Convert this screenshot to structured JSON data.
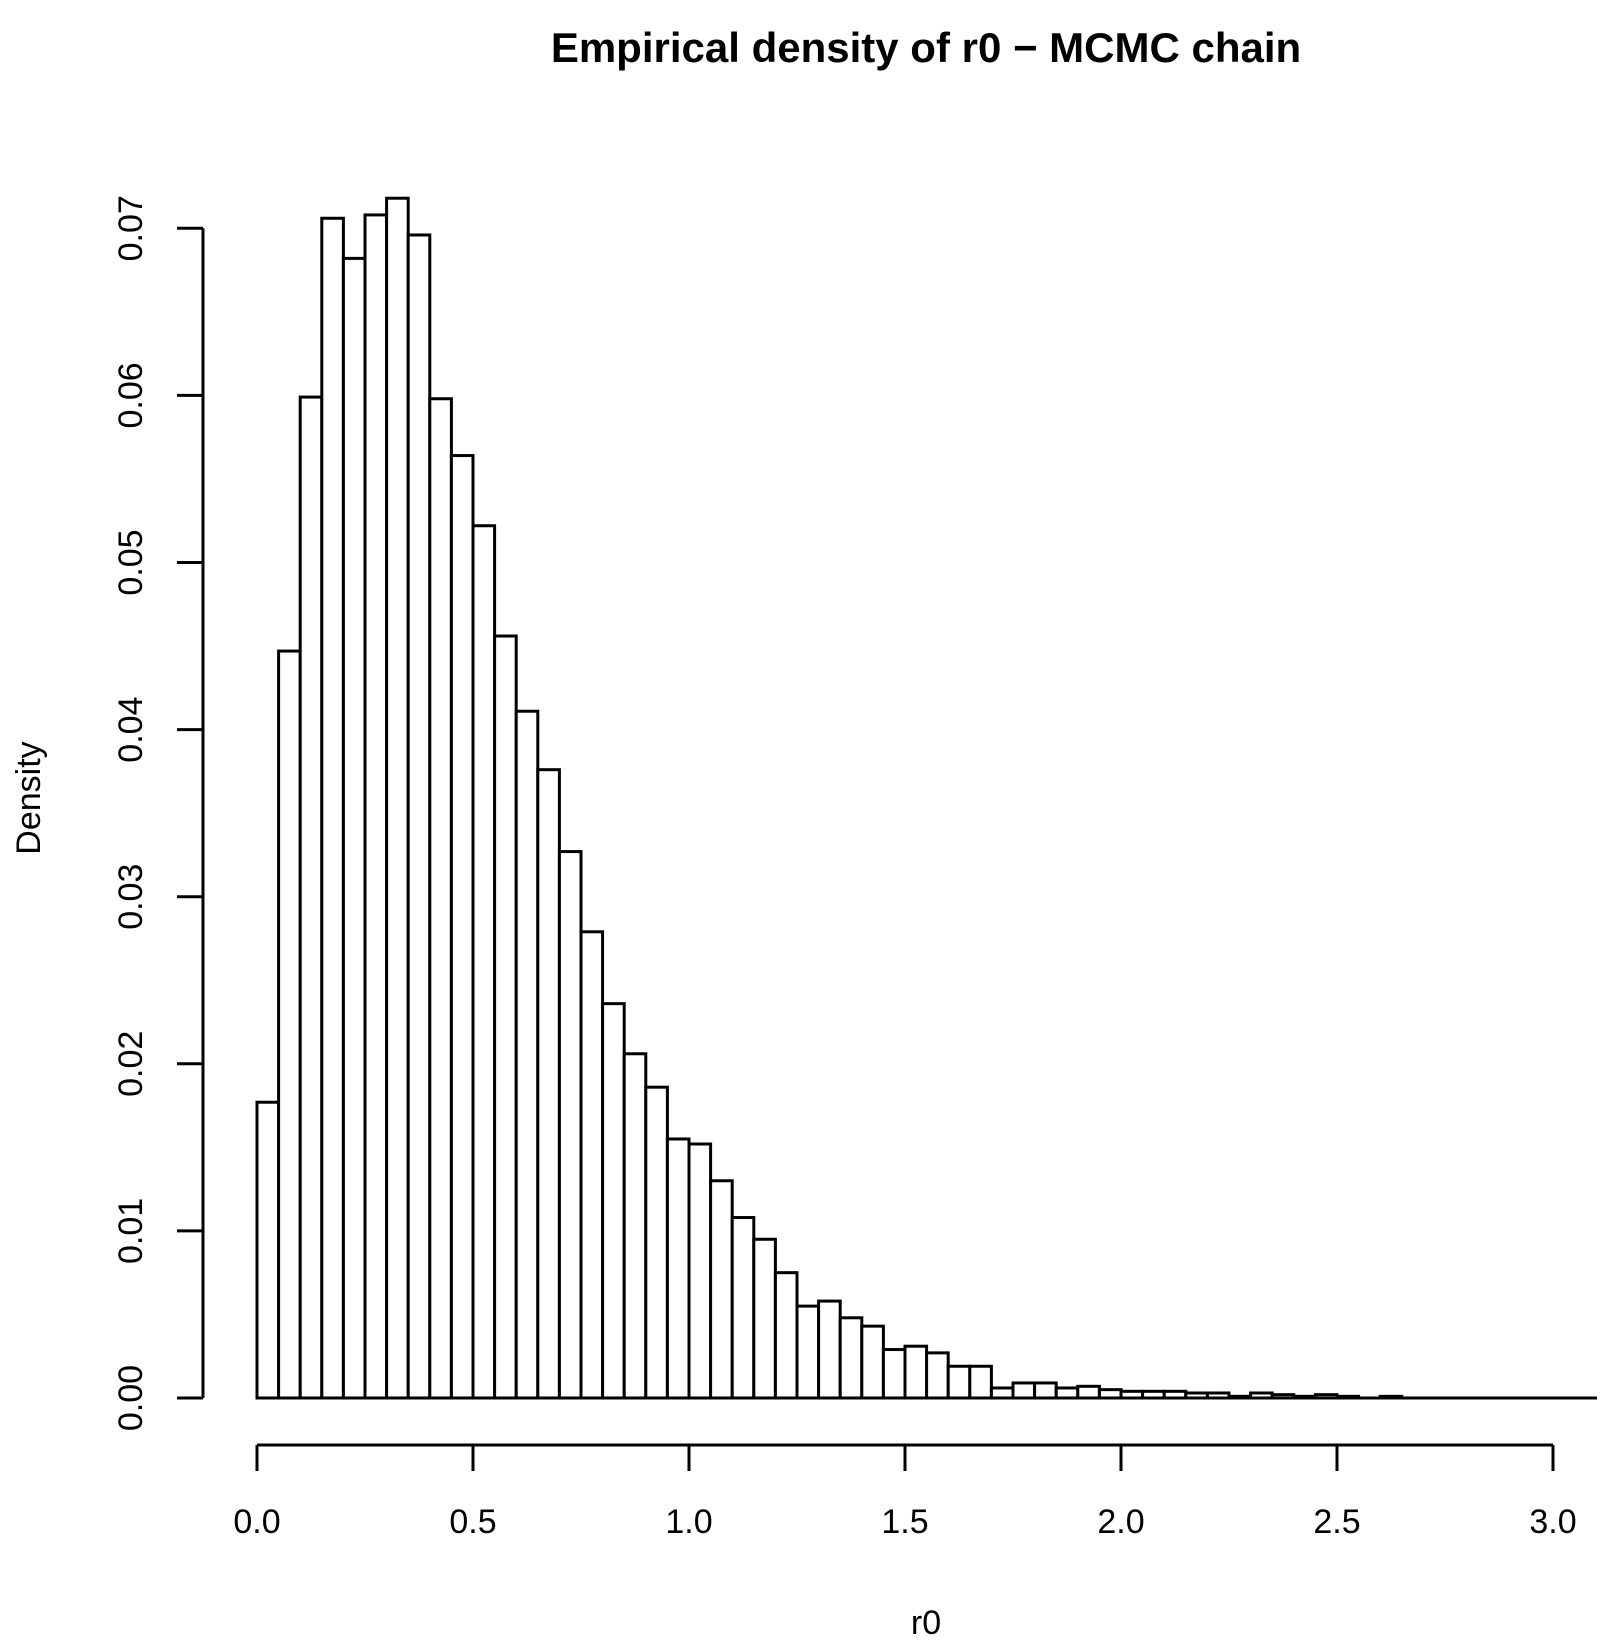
{
  "chart_data": {
    "type": "bar",
    "title": "Empirical density of r0 − MCMC chain",
    "xlabel": "r0",
    "ylabel": "Density",
    "bin_width": 0.05,
    "x_start": 0.0,
    "xlim": [
      0.0,
      3.0
    ],
    "ylim": [
      0.0,
      0.07
    ],
    "x_ticks": [
      "0.0",
      "0.5",
      "1.0",
      "1.5",
      "2.0",
      "2.5",
      "3.0"
    ],
    "y_ticks": [
      "0.00",
      "0.01",
      "0.02",
      "0.03",
      "0.04",
      "0.05",
      "0.06",
      "0.07"
    ],
    "values": [
      0.0177,
      0.0447,
      0.0599,
      0.0706,
      0.0682,
      0.0708,
      0.0718,
      0.0696,
      0.0598,
      0.0564,
      0.0522,
      0.0456,
      0.0411,
      0.0376,
      0.0327,
      0.0279,
      0.0236,
      0.0206,
      0.0186,
      0.0155,
      0.0152,
      0.013,
      0.0108,
      0.0095,
      0.0075,
      0.0055,
      0.0058,
      0.0048,
      0.0043,
      0.0029,
      0.0031,
      0.0027,
      0.0019,
      0.0019,
      0.0006,
      0.0009,
      0.0009,
      0.0006,
      0.0007,
      0.0005,
      0.0004,
      0.0004,
      0.0004,
      0.0003,
      0.0003,
      0.0001,
      0.0003,
      0.0002,
      0.0001,
      0.0002,
      0.0001,
      0.0,
      0.0001,
      0.0,
      0.0,
      0.0,
      0.0,
      0.0,
      0.0,
      0.0,
      0.0,
      0.0
    ],
    "grid": false,
    "legend": "none"
  }
}
